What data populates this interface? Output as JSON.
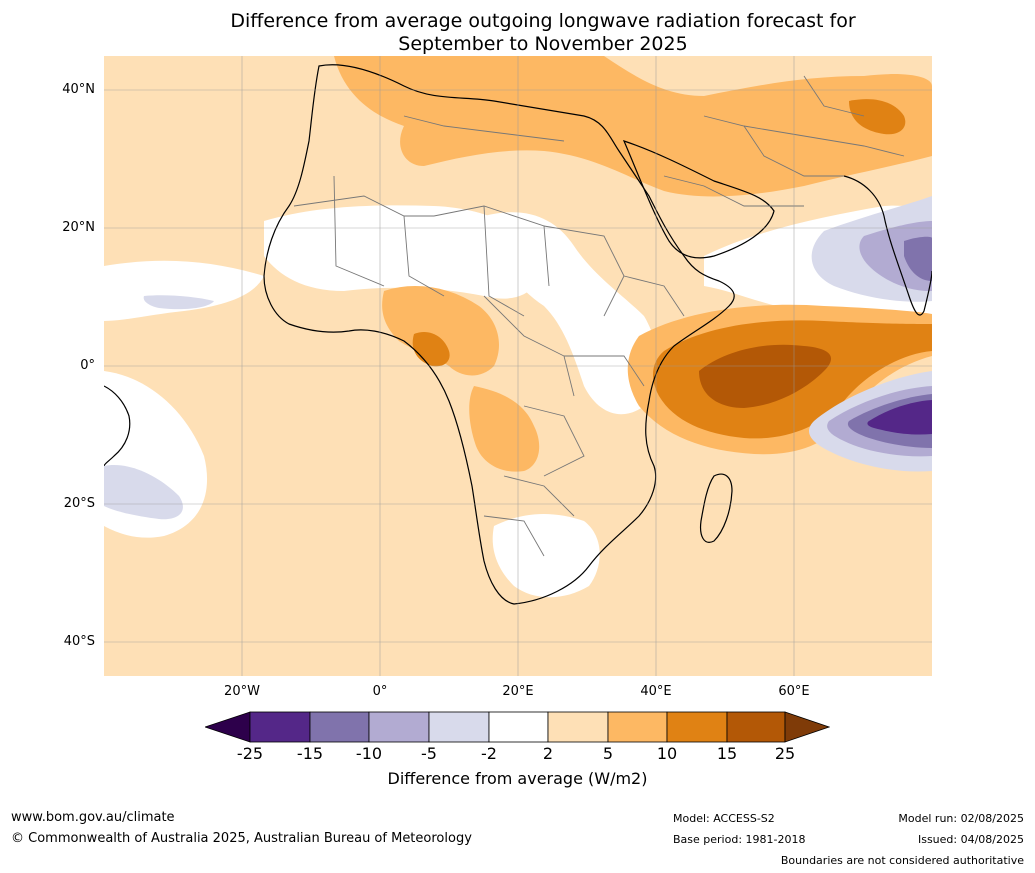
{
  "title_line1": "Difference from average outgoing longwave radiation forecast for",
  "title_line2": "September to November 2025",
  "lat_labels": [
    "40°N",
    "20°N",
    "0°",
    "20°S",
    "40°S"
  ],
  "lon_labels": [
    "20°W",
    "0°",
    "20°E",
    "40°E",
    "60°E"
  ],
  "colorbar": {
    "title": "Difference from average (W/m2)",
    "ticks": [
      "-25",
      "-15",
      "-10",
      "-5",
      "-2",
      "2",
      "5",
      "10",
      "15",
      "25"
    ],
    "colors": {
      "under": "#2d004b",
      "m25_15": "#542788",
      "m15_10": "#8073ac",
      "m10_5": "#b2abd2",
      "m5_2": "#d8daeb",
      "m2_2": "#ffffff",
      "p2_5": "#fee0b6",
      "p5_10": "#fdb863",
      "p10_15": "#e08214",
      "p15_25": "#b35806",
      "over": "#7f3b08"
    }
  },
  "footer": {
    "website": "www.bom.gov.au/climate",
    "copyright": "© Commonwealth of Australia 2025, Australian Bureau of Meteorology",
    "model": "Model: ACCESS-S2",
    "base_period": "Base period: 1981-2018",
    "model_run": "Model run: 02/08/2025",
    "issued": "Issued: 04/08/2025",
    "disclaimer": "Boundaries are not considered authoritative"
  }
}
